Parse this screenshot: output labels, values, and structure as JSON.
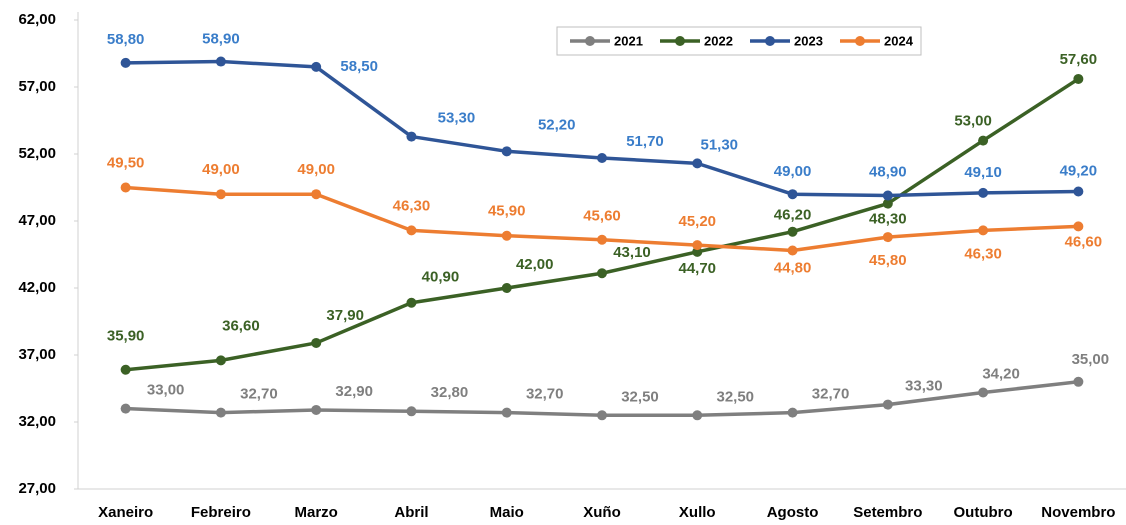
{
  "chart_data": {
    "type": "line",
    "categories": [
      "Xaneiro",
      "Febreiro",
      "Marzo",
      "Abril",
      "Maio",
      "Xuño",
      "Xullo",
      "Agosto",
      "Setembro",
      "Outubro",
      "Novembro"
    ],
    "ylim": [
      27,
      62
    ],
    "yticks": [
      {
        "value": 27,
        "label": "27,00"
      },
      {
        "value": 32,
        "label": "32,00"
      },
      {
        "value": 37,
        "label": "37,00"
      },
      {
        "value": 42,
        "label": "42,00"
      },
      {
        "value": 47,
        "label": "47,00"
      },
      {
        "value": 52,
        "label": "52,00"
      },
      {
        "value": 57,
        "label": "57,00"
      },
      {
        "value": 62,
        "label": "62,00"
      }
    ],
    "grid": false,
    "legend": "top",
    "series": [
      {
        "name": "2021",
        "color": "#7f7f7f",
        "label_color": "#7f7f7f",
        "values": [
          33.0,
          32.7,
          32.9,
          32.8,
          32.7,
          32.5,
          32.5,
          32.7,
          33.3,
          34.2,
          35.0
        ],
        "value_labels": [
          "33,00",
          "32,70",
          "32,90",
          "32,80",
          "32,70",
          "32,50",
          "32,50",
          "32,70",
          "33,30",
          "34,20",
          "35,00"
        ]
      },
      {
        "name": "2022",
        "color": "#3b6125",
        "label_color": "#3b6125",
        "values": [
          35.9,
          36.6,
          37.9,
          40.9,
          42.0,
          43.1,
          44.7,
          46.2,
          48.3,
          53.0,
          57.6
        ],
        "value_labels": [
          "35,90",
          "36,60",
          "37,90",
          "40,90",
          "42,00",
          "43,10",
          "44,70",
          "46,20",
          "48,30",
          "53,00",
          "57,60"
        ]
      },
      {
        "name": "2023",
        "color": "#2f5597",
        "label_color": "#3a7dc9",
        "values": [
          58.8,
          58.9,
          58.5,
          53.3,
          52.2,
          51.7,
          51.3,
          49.0,
          48.9,
          49.1,
          49.2
        ],
        "value_labels": [
          "58,80",
          "58,90",
          "58,50",
          "53,30",
          "52,20",
          "51,70",
          "51,30",
          "49,00",
          "48,90",
          "49,10",
          "49,20"
        ]
      },
      {
        "name": "2024",
        "color": "#ed7d31",
        "label_color": "#ed7d31",
        "values": [
          49.5,
          49.0,
          49.0,
          46.3,
          45.9,
          45.6,
          45.2,
          44.8,
          45.8,
          46.3,
          46.6
        ],
        "value_labels": [
          "49,50",
          "49,00",
          "49,00",
          "46,30",
          "45,90",
          "45,60",
          "45,20",
          "44,80",
          "45,80",
          "46,30",
          "46,60"
        ]
      }
    ]
  }
}
